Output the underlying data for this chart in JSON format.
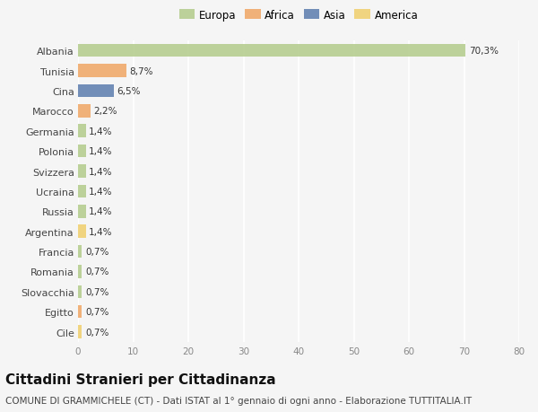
{
  "categories": [
    "Albania",
    "Tunisia",
    "Cina",
    "Marocco",
    "Germania",
    "Polonia",
    "Svizzera",
    "Ucraina",
    "Russia",
    "Argentina",
    "Francia",
    "Romania",
    "Slovacchia",
    "Egitto",
    "Cile"
  ],
  "values": [
    70.3,
    8.7,
    6.5,
    2.2,
    1.4,
    1.4,
    1.4,
    1.4,
    1.4,
    1.4,
    0.7,
    0.7,
    0.7,
    0.7,
    0.7
  ],
  "labels": [
    "70,3%",
    "8,7%",
    "6,5%",
    "2,2%",
    "1,4%",
    "1,4%",
    "1,4%",
    "1,4%",
    "1,4%",
    "1,4%",
    "0,7%",
    "0,7%",
    "0,7%",
    "0,7%",
    "0,7%"
  ],
  "continents": [
    "Europa",
    "Africa",
    "Asia",
    "Africa",
    "Europa",
    "Europa",
    "Europa",
    "Europa",
    "Europa",
    "America",
    "Europa",
    "Europa",
    "Europa",
    "Africa",
    "America"
  ],
  "continent_colors": {
    "Europa": "#b5cc8e",
    "Africa": "#f0a868",
    "Asia": "#6080b0",
    "America": "#f0d070"
  },
  "legend_order": [
    "Europa",
    "Africa",
    "Asia",
    "America"
  ],
  "background_color": "#f5f5f5",
  "xlim": [
    0,
    80
  ],
  "xticks": [
    0,
    10,
    20,
    30,
    40,
    50,
    60,
    70,
    80
  ],
  "title": "Cittadini Stranieri per Cittadinanza",
  "subtitle": "COMUNE DI GRAMMICHELE (CT) - Dati ISTAT al 1° gennaio di ogni anno - Elaborazione TUTTITALIA.IT",
  "title_fontsize": 11,
  "subtitle_fontsize": 7.5,
  "bar_height": 0.65
}
